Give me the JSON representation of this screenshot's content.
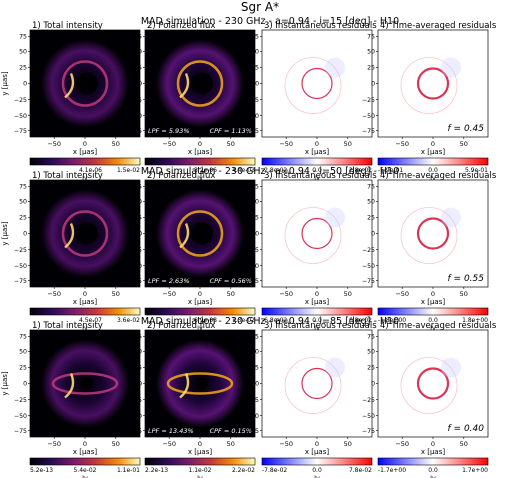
{
  "figure": {
    "title": "Sgr A*",
    "rows": [
      {
        "header": "MAD simulation  -  230 GHz  -  a=0.94  -  i=15 [deg]  -  H10",
        "panels": [
          {
            "label": "1)   Total intensity",
            "kind": "intensity",
            "cbar_ticks": [
              "4.1e-06",
              "1.5e-02"
            ],
            "cbar_unit": "Jy"
          },
          {
            "label": "2)   Polarized flux",
            "kind": "polarized",
            "lpf": "LPF = 5.93%",
            "cpf": "CPF = 1.13%",
            "cbar_ticks": [
              "3.2e-06",
              "4.4e-03"
            ],
            "cbar_unit": "Jy"
          },
          {
            "label": "3)   Instantaneous residuals",
            "kind": "resid",
            "cbar_ticks": [
              "-2.8e-02",
              "0.0",
              "2.8e-02"
            ],
            "cbar_unit": "Jy"
          },
          {
            "label": "4)   Time-averaged residuals",
            "kind": "tavg",
            "fval": "f = 0.45",
            "cbar_ticks": [
              "-5.9e-01",
              "0.0",
              "5.9e-01"
            ],
            "cbar_unit": "Jy"
          }
        ]
      },
      {
        "header": "MAD simulation  -  230 GHz  -  a=0.94  -  i=50 [deg]  -  H10",
        "panels": [
          {
            "label": "1)   Total intensity",
            "kind": "intensity",
            "cbar_ticks": [
              "4.5e-07",
              "3.6e-02"
            ],
            "cbar_unit": "Jy"
          },
          {
            "label": "2)   Polarized flux",
            "kind": "polarized",
            "lpf": "LPF = 2.63%",
            "cpf": "CPF = 0.56%",
            "cbar_ticks": [
              "6.9e-08",
              "1.3e-02"
            ],
            "cbar_unit": "Jy"
          },
          {
            "label": "3)   Instantaneous residuals",
            "kind": "resid",
            "cbar_ticks": [
              "-6.8e-02",
              "0.0",
              "6.8e-02"
            ],
            "cbar_unit": "Jy"
          },
          {
            "label": "4)   Time-averaged residuals",
            "kind": "tavg",
            "fval": "f = 0.55",
            "cbar_ticks": [
              "-1.8e+00",
              "0.0",
              "1.8e+00"
            ],
            "cbar_unit": "Jy"
          }
        ]
      },
      {
        "header": "MAD simulation  -  230 GHz  -  a=0.94  -  i=85 [deg]  -  H10",
        "panels": [
          {
            "label": "1)   Total intensity",
            "kind": "intensity",
            "cbar_ticks": [
              "5.2e-13",
              "5.4e-02",
              "1.1e-01"
            ],
            "cbar_unit": "Jy"
          },
          {
            "label": "2)   Polarized flux",
            "kind": "polarized",
            "lpf": "LPF = 13.43%",
            "cpf": "CPF = 0.15%",
            "cbar_ticks": [
              "2.2e-13",
              "1.1e-02",
              "2.2e-02"
            ],
            "cbar_unit": "Jy"
          },
          {
            "label": "3)   Instantaneous residuals",
            "kind": "resid",
            "cbar_ticks": [
              "-7.8e-02",
              "0.0",
              "7.8e-02"
            ],
            "cbar_unit": "Jy"
          },
          {
            "label": "4)   Time-averaged residuals",
            "kind": "tavg",
            "fval": "f = 0.40",
            "cbar_ticks": [
              "-1.7e+00",
              "0.0",
              "1.7e+00"
            ],
            "cbar_unit": "Jy"
          }
        ]
      }
    ],
    "axes": {
      "xlabel": "x [μas]",
      "ylabel": "y [μas]",
      "xticks": [
        "−50",
        "0",
        "50"
      ],
      "yticks": [
        "75",
        "50",
        "25",
        "0",
        "−25",
        "−50",
        "−75"
      ]
    }
  }
}
